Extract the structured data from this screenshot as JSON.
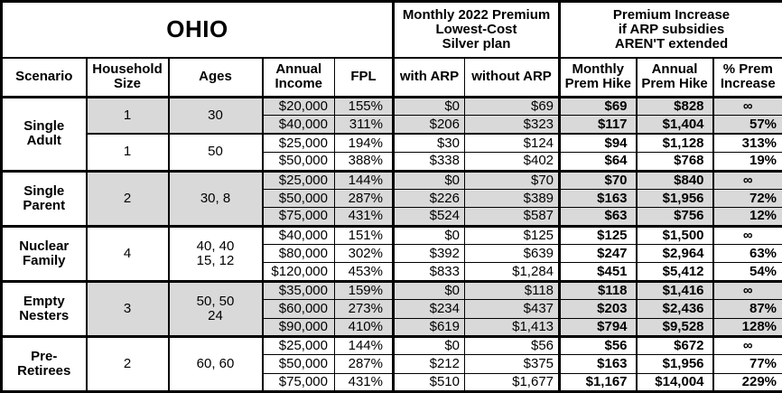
{
  "title": "OHIO",
  "header": {
    "premium_group_lines": [
      "Monthly 2022 Premium",
      "Lowest-Cost",
      "Silver plan"
    ],
    "increase_group_lines": [
      "Premium Increase",
      "if ARP subsidies",
      "AREN'T extended"
    ],
    "columns": [
      "Scenario",
      "Household Size",
      "Ages",
      "Annual Income",
      "FPL",
      "with ARP",
      "without ARP",
      "Monthly Prem Hike",
      "Annual Prem Hike",
      "% Prem Increase"
    ]
  },
  "colors": {
    "shaded_row": "#d9d9d9",
    "border": "#000000",
    "background": "#ffffff"
  },
  "chart_data": {
    "type": "table",
    "title": "OHIO",
    "groups": [
      {
        "scenario": "Single Adult",
        "scenario_lines": [
          "Single",
          "Adult"
        ],
        "subgroups": [
          {
            "household_size": "1",
            "ages_lines": [
              "30"
            ],
            "shaded": true,
            "rows": [
              {
                "income": "$20,000",
                "fpl": "155%",
                "with_arp": "$0",
                "without_arp": "$69",
                "monthly_hike": "$69",
                "annual_hike": "$828",
                "pct_increase": "∞"
              },
              {
                "income": "$40,000",
                "fpl": "311%",
                "with_arp": "$206",
                "without_arp": "$323",
                "monthly_hike": "$117",
                "annual_hike": "$1,404",
                "pct_increase": "57%"
              }
            ]
          },
          {
            "household_size": "1",
            "ages_lines": [
              "50"
            ],
            "shaded": false,
            "rows": [
              {
                "income": "$25,000",
                "fpl": "194%",
                "with_arp": "$30",
                "without_arp": "$124",
                "monthly_hike": "$94",
                "annual_hike": "$1,128",
                "pct_increase": "313%"
              },
              {
                "income": "$50,000",
                "fpl": "388%",
                "with_arp": "$338",
                "without_arp": "$402",
                "monthly_hike": "$64",
                "annual_hike": "$768",
                "pct_increase": "19%"
              }
            ]
          }
        ]
      },
      {
        "scenario": "Single Parent",
        "scenario_lines": [
          "Single",
          "Parent"
        ],
        "subgroups": [
          {
            "household_size": "2",
            "ages_lines": [
              "30, 8"
            ],
            "shaded": true,
            "rows": [
              {
                "income": "$25,000",
                "fpl": "144%",
                "with_arp": "$0",
                "without_arp": "$70",
                "monthly_hike": "$70",
                "annual_hike": "$840",
                "pct_increase": "∞"
              },
              {
                "income": "$50,000",
                "fpl": "287%",
                "with_arp": "$226",
                "without_arp": "$389",
                "monthly_hike": "$163",
                "annual_hike": "$1,956",
                "pct_increase": "72%"
              },
              {
                "income": "$75,000",
                "fpl": "431%",
                "with_arp": "$524",
                "without_arp": "$587",
                "monthly_hike": "$63",
                "annual_hike": "$756",
                "pct_increase": "12%"
              }
            ]
          }
        ]
      },
      {
        "scenario": "Nuclear Family",
        "scenario_lines": [
          "Nuclear",
          "Family"
        ],
        "subgroups": [
          {
            "household_size": "4",
            "ages_lines": [
              "40, 40",
              "15, 12"
            ],
            "shaded": false,
            "rows": [
              {
                "income": "$40,000",
                "fpl": "151%",
                "with_arp": "$0",
                "without_arp": "$125",
                "monthly_hike": "$125",
                "annual_hike": "$1,500",
                "pct_increase": "∞"
              },
              {
                "income": "$80,000",
                "fpl": "302%",
                "with_arp": "$392",
                "without_arp": "$639",
                "monthly_hike": "$247",
                "annual_hike": "$2,964",
                "pct_increase": "63%"
              },
              {
                "income": "$120,000",
                "fpl": "453%",
                "with_arp": "$833",
                "without_arp": "$1,284",
                "monthly_hike": "$451",
                "annual_hike": "$5,412",
                "pct_increase": "54%"
              }
            ]
          }
        ]
      },
      {
        "scenario": "Empty Nesters",
        "scenario_lines": [
          "Empty",
          "Nesters"
        ],
        "subgroups": [
          {
            "household_size": "3",
            "ages_lines": [
              "50, 50",
              "24"
            ],
            "shaded": true,
            "rows": [
              {
                "income": "$35,000",
                "fpl": "159%",
                "with_arp": "$0",
                "without_arp": "$118",
                "monthly_hike": "$118",
                "annual_hike": "$1,416",
                "pct_increase": "∞"
              },
              {
                "income": "$60,000",
                "fpl": "273%",
                "with_arp": "$234",
                "without_arp": "$437",
                "monthly_hike": "$203",
                "annual_hike": "$2,436",
                "pct_increase": "87%"
              },
              {
                "income": "$90,000",
                "fpl": "410%",
                "with_arp": "$619",
                "without_arp": "$1,413",
                "monthly_hike": "$794",
                "annual_hike": "$9,528",
                "pct_increase": "128%"
              }
            ]
          }
        ]
      },
      {
        "scenario": "Pre-Retirees",
        "scenario_lines": [
          "Pre-",
          "Retirees"
        ],
        "subgroups": [
          {
            "household_size": "2",
            "ages_lines": [
              "60, 60"
            ],
            "shaded": false,
            "rows": [
              {
                "income": "$25,000",
                "fpl": "144%",
                "with_arp": "$0",
                "without_arp": "$56",
                "monthly_hike": "$56",
                "annual_hike": "$672",
                "pct_increase": "∞"
              },
              {
                "income": "$50,000",
                "fpl": "287%",
                "with_arp": "$212",
                "without_arp": "$375",
                "monthly_hike": "$163",
                "annual_hike": "$1,956",
                "pct_increase": "77%"
              },
              {
                "income": "$75,000",
                "fpl": "431%",
                "with_arp": "$510",
                "without_arp": "$1,677",
                "monthly_hike": "$1,167",
                "annual_hike": "$14,004",
                "pct_increase": "229%"
              }
            ]
          }
        ]
      }
    ]
  }
}
